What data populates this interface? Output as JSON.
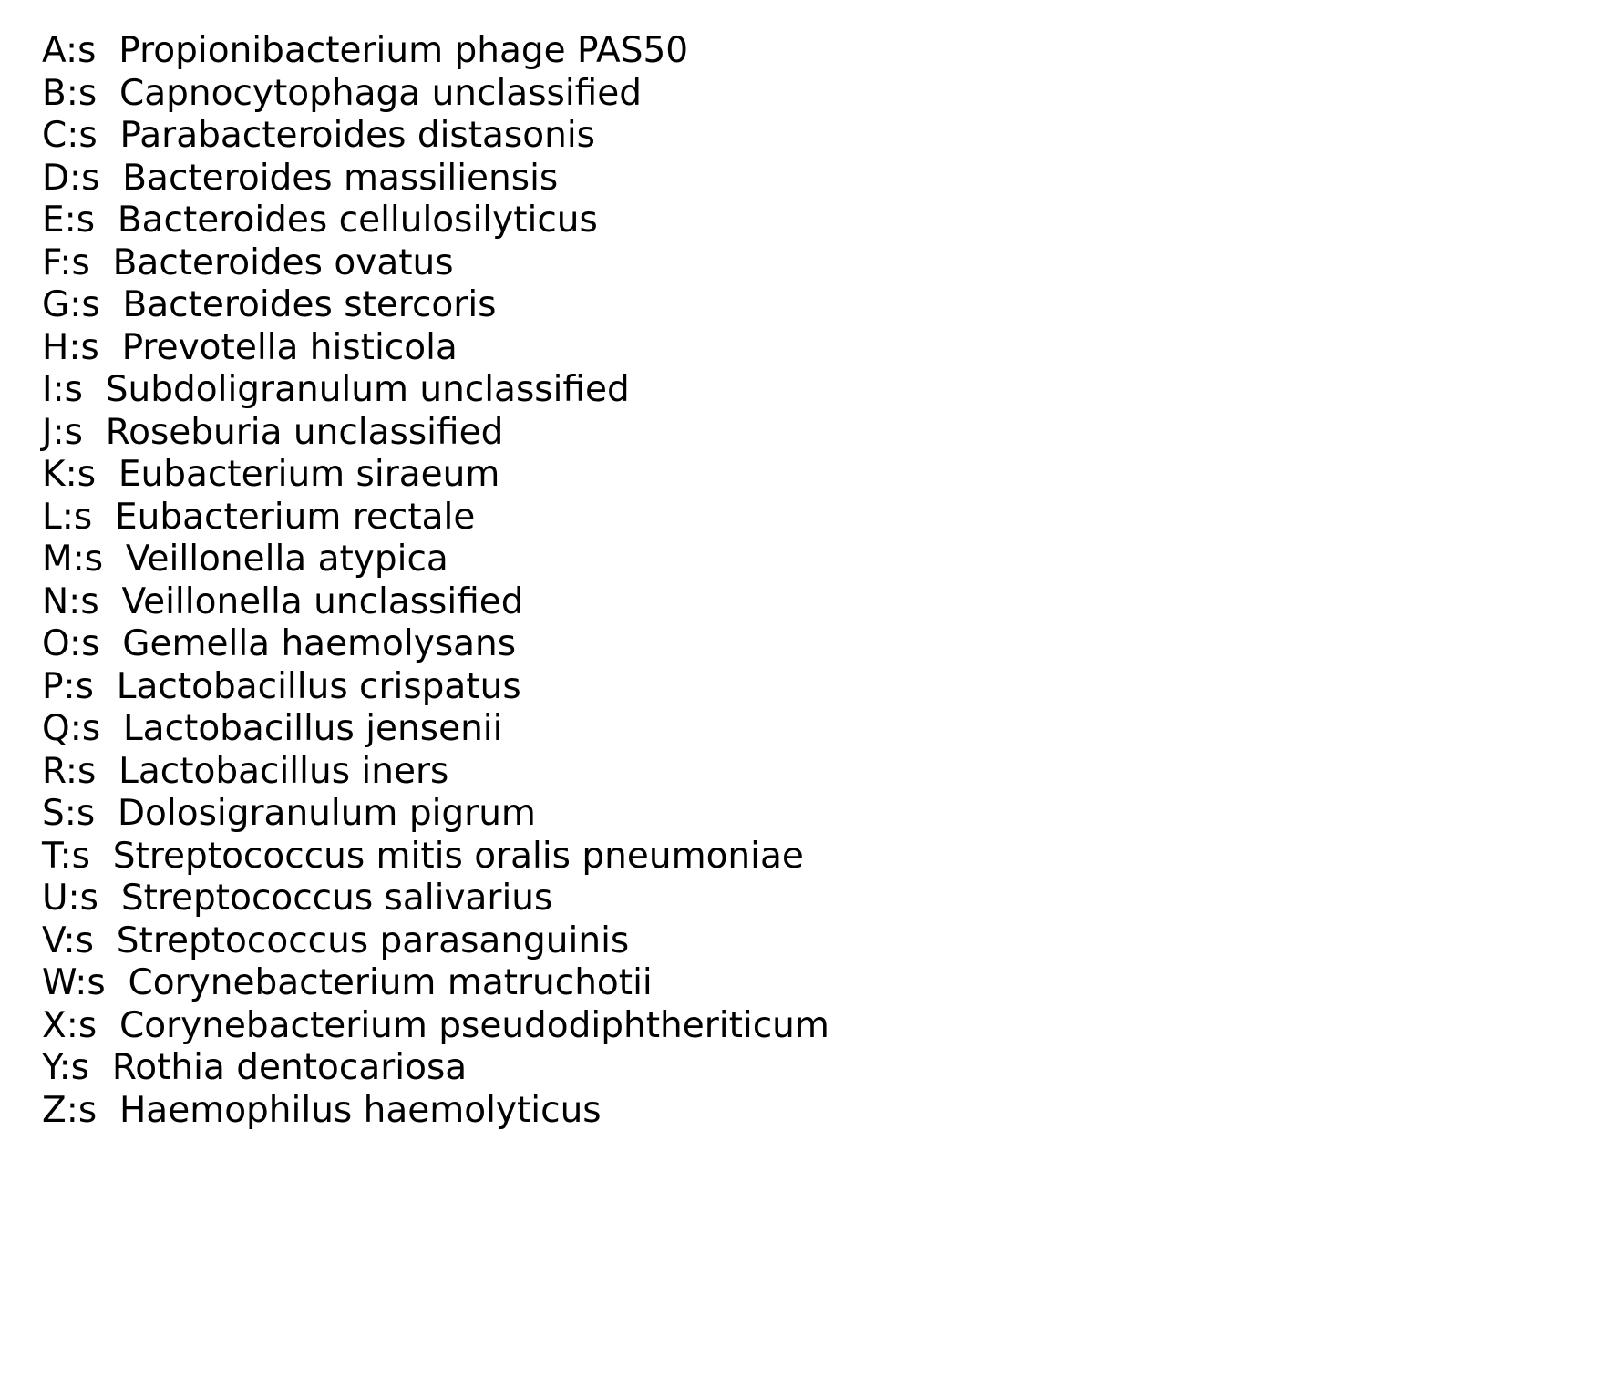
{
  "legend": {
    "entries": [
      {
        "key": "A:s",
        "label": "Propionibacterium phage PAS50"
      },
      {
        "key": "B:s",
        "label": "Capnocytophaga unclassified"
      },
      {
        "key": "C:s",
        "label": "Parabacteroides distasonis"
      },
      {
        "key": "D:s",
        "label": "Bacteroides massiliensis"
      },
      {
        "key": "E:s",
        "label": "Bacteroides cellulosilyticus"
      },
      {
        "key": "F:s",
        "label": "Bacteroides ovatus"
      },
      {
        "key": "G:s",
        "label": "Bacteroides stercoris"
      },
      {
        "key": "H:s",
        "label": "Prevotella histicola"
      },
      {
        "key": "I:s",
        "label": "Subdoligranulum unclassified"
      },
      {
        "key": "J:s",
        "label": "Roseburia unclassified"
      },
      {
        "key": "K:s",
        "label": "Eubacterium siraeum"
      },
      {
        "key": "L:s",
        "label": "Eubacterium rectale"
      },
      {
        "key": "M:s",
        "label": "Veillonella atypica"
      },
      {
        "key": "N:s",
        "label": "Veillonella unclassified"
      },
      {
        "key": "O:s",
        "label": "Gemella haemolysans"
      },
      {
        "key": "P:s",
        "label": "Lactobacillus crispatus"
      },
      {
        "key": "Q:s",
        "label": "Lactobacillus jensenii"
      },
      {
        "key": "R:s",
        "label": "Lactobacillus iners"
      },
      {
        "key": "S:s",
        "label": "Dolosigranulum pigrum"
      },
      {
        "key": "T:s",
        "label": "Streptococcus mitis oralis pneumoniae"
      },
      {
        "key": "U:s",
        "label": "Streptococcus salivarius"
      },
      {
        "key": "V:s",
        "label": "Streptococcus parasanguinis"
      },
      {
        "key": "W:s",
        "label": "Corynebacterium matruchotii"
      },
      {
        "key": "X:s",
        "label": "Corynebacterium pseudodiphtheriticum"
      },
      {
        "key": "Y:s",
        "label": "Rothia dentocariosa"
      },
      {
        "key": "Z:s",
        "label": "Haemophilus haemolyticus"
      }
    ]
  }
}
